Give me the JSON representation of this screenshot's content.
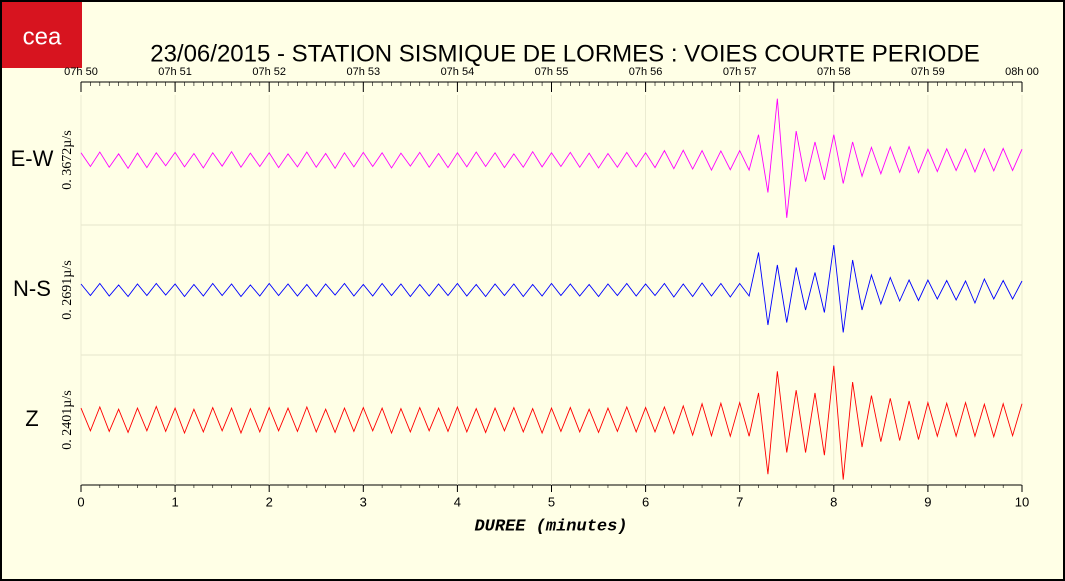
{
  "chart_data": {
    "type": "seismogram",
    "title": "23/06/2015  -  STATION SISMIQUE DE LORMES : VOIES COURTE PERIODE",
    "logo": "cea",
    "xlabel": "DUREE (minutes)",
    "xlim": [
      0,
      10
    ],
    "xticks": [
      0,
      1,
      2,
      3,
      4,
      5,
      6,
      7,
      8,
      9,
      10
    ],
    "x2ticks": [
      {
        "value": 0,
        "label": "07h 50"
      },
      {
        "value": 1,
        "label": "07h 51"
      },
      {
        "value": 2,
        "label": "07h 52"
      },
      {
        "value": 3,
        "label": "07h 53"
      },
      {
        "value": 4,
        "label": "07h 54"
      },
      {
        "value": 5,
        "label": "07h 55"
      },
      {
        "value": 6,
        "label": "07h 56"
      },
      {
        "value": 7,
        "label": "07h 57"
      },
      {
        "value": 8,
        "label": "07h 58"
      },
      {
        "value": 9,
        "label": "07h 59"
      },
      {
        "value": 10,
        "label": "08h 00"
      }
    ],
    "x": [
      0,
      0.1,
      0.2,
      0.3,
      0.4,
      0.5,
      0.6,
      0.7,
      0.8,
      0.9,
      1,
      1.1,
      1.2,
      1.3,
      1.4,
      1.5,
      1.6,
      1.7,
      1.8,
      1.9,
      2,
      2.1,
      2.2,
      2.3,
      2.4,
      2.5,
      2.6,
      2.7,
      2.8,
      2.9,
      3,
      3.1,
      3.2,
      3.3,
      3.4,
      3.5,
      3.6,
      3.7,
      3.8,
      3.9,
      4,
      4.1,
      4.2,
      4.3,
      4.4,
      4.5,
      4.6,
      4.7,
      4.8,
      4.9,
      5,
      5.1,
      5.2,
      5.3,
      5.4,
      5.5,
      5.6,
      5.7,
      5.8,
      5.9,
      6,
      6.1,
      6.2,
      6.3,
      6.4,
      6.5,
      6.6,
      6.7,
      6.8,
      6.9,
      7,
      7.1,
      7.2,
      7.3,
      7.4,
      7.5,
      7.6,
      7.7,
      7.8,
      7.9,
      8,
      8.1,
      8.2,
      8.3,
      8.4,
      8.5,
      8.6,
      8.7,
      8.8,
      8.9,
      9,
      9.1,
      9.2,
      9.3,
      9.4,
      9.5,
      9.6,
      9.7,
      9.8,
      9.9,
      10
    ],
    "series": [
      {
        "name": "E-W",
        "scale_label": "0. 3672µ/s",
        "color": "#ff00ff",
        "ylim": [
          -0.18,
          0.18
        ],
        "values": [
          0.02,
          -0.018,
          0.022,
          -0.02,
          0.017,
          -0.023,
          0.019,
          -0.021,
          0.02,
          -0.016,
          0.021,
          -0.019,
          0.018,
          -0.022,
          0.02,
          -0.017,
          0.023,
          -0.02,
          0.019,
          -0.018,
          0.02,
          -0.021,
          0.017,
          -0.019,
          0.022,
          -0.02,
          0.018,
          -0.023,
          0.02,
          -0.019,
          0.021,
          -0.018,
          0.02,
          -0.022,
          0.019,
          -0.017,
          0.021,
          -0.02,
          0.018,
          -0.021,
          0.02,
          -0.019,
          0.022,
          -0.018,
          0.02,
          -0.021,
          0.017,
          -0.02,
          0.023,
          -0.019,
          0.02,
          -0.018,
          0.021,
          -0.02,
          0.019,
          -0.022,
          0.018,
          -0.02,
          0.021,
          -0.019,
          0.02,
          -0.021,
          0.026,
          -0.024,
          0.027,
          -0.025,
          0.026,
          -0.028,
          0.025,
          -0.027,
          0.026,
          -0.028,
          0.07,
          -0.09,
          0.17,
          -0.16,
          0.08,
          -0.06,
          0.05,
          -0.055,
          0.07,
          -0.065,
          0.05,
          -0.045,
          0.035,
          -0.038,
          0.036,
          -0.034,
          0.037,
          -0.035,
          0.03,
          -0.032,
          0.031,
          -0.029,
          0.03,
          -0.033,
          0.031,
          -0.03,
          0.032,
          -0.029,
          0.03
        ]
      },
      {
        "name": "N-S",
        "scale_label": "0. 2691µ/s",
        "color": "#0000ff",
        "ylim": [
          -0.13,
          0.13
        ],
        "values": [
          0.012,
          -0.011,
          0.013,
          -0.012,
          0.01,
          -0.013,
          0.012,
          -0.011,
          0.013,
          -0.01,
          0.012,
          -0.013,
          0.011,
          -0.012,
          0.013,
          -0.011,
          0.012,
          -0.013,
          0.01,
          -0.012,
          0.013,
          -0.011,
          0.012,
          -0.012,
          0.011,
          -0.013,
          0.012,
          -0.01,
          0.013,
          -0.012,
          0.011,
          -0.012,
          0.013,
          -0.011,
          0.012,
          -0.013,
          0.011,
          -0.012,
          0.012,
          -0.011,
          0.013,
          -0.012,
          0.011,
          -0.013,
          0.012,
          -0.011,
          0.012,
          -0.013,
          0.011,
          -0.012,
          0.013,
          -0.011,
          0.012,
          -0.012,
          0.011,
          -0.013,
          0.012,
          -0.011,
          0.013,
          -0.012,
          0.012,
          -0.011,
          0.013,
          -0.014,
          0.012,
          -0.013,
          0.014,
          -0.012,
          0.013,
          -0.014,
          0.013,
          -0.012,
          0.075,
          -0.07,
          0.05,
          -0.065,
          0.045,
          -0.04,
          0.035,
          -0.045,
          0.09,
          -0.085,
          0.06,
          -0.04,
          0.03,
          -0.028,
          0.025,
          -0.022,
          0.02,
          -0.021,
          0.02,
          -0.018,
          0.019,
          -0.02,
          0.018,
          -0.026,
          0.022,
          -0.018,
          0.019,
          -0.018,
          0.018
        ]
      },
      {
        "name": "Z",
        "scale_label": "0. 2401µ/s",
        "color": "#ff0000",
        "ylim": [
          -0.12,
          0.12
        ],
        "values": [
          0.022,
          -0.02,
          0.024,
          -0.021,
          0.02,
          -0.023,
          0.022,
          -0.02,
          0.025,
          -0.021,
          0.022,
          -0.024,
          0.02,
          -0.022,
          0.023,
          -0.02,
          0.022,
          -0.024,
          0.021,
          -0.022,
          0.023,
          -0.02,
          0.022,
          -0.021,
          0.024,
          -0.022,
          0.02,
          -0.023,
          0.022,
          -0.021,
          0.023,
          -0.02,
          0.022,
          -0.024,
          0.021,
          -0.022,
          0.023,
          -0.02,
          0.022,
          -0.021,
          0.024,
          -0.022,
          0.021,
          -0.023,
          0.022,
          -0.02,
          0.023,
          -0.022,
          0.021,
          -0.024,
          0.022,
          -0.021,
          0.023,
          -0.022,
          0.02,
          -0.023,
          0.022,
          -0.021,
          0.024,
          -0.022,
          0.023,
          -0.022,
          0.024,
          -0.025,
          0.026,
          -0.028,
          0.03,
          -0.029,
          0.031,
          -0.03,
          0.032,
          -0.03,
          0.05,
          -0.1,
          0.09,
          -0.06,
          0.055,
          -0.06,
          0.05,
          -0.065,
          0.1,
          -0.11,
          0.07,
          -0.05,
          0.045,
          -0.04,
          0.04,
          -0.038,
          0.035,
          -0.036,
          0.032,
          -0.03,
          0.031,
          -0.03,
          0.032,
          -0.03,
          0.029,
          -0.031,
          0.03,
          -0.029,
          0.03
        ]
      }
    ]
  }
}
